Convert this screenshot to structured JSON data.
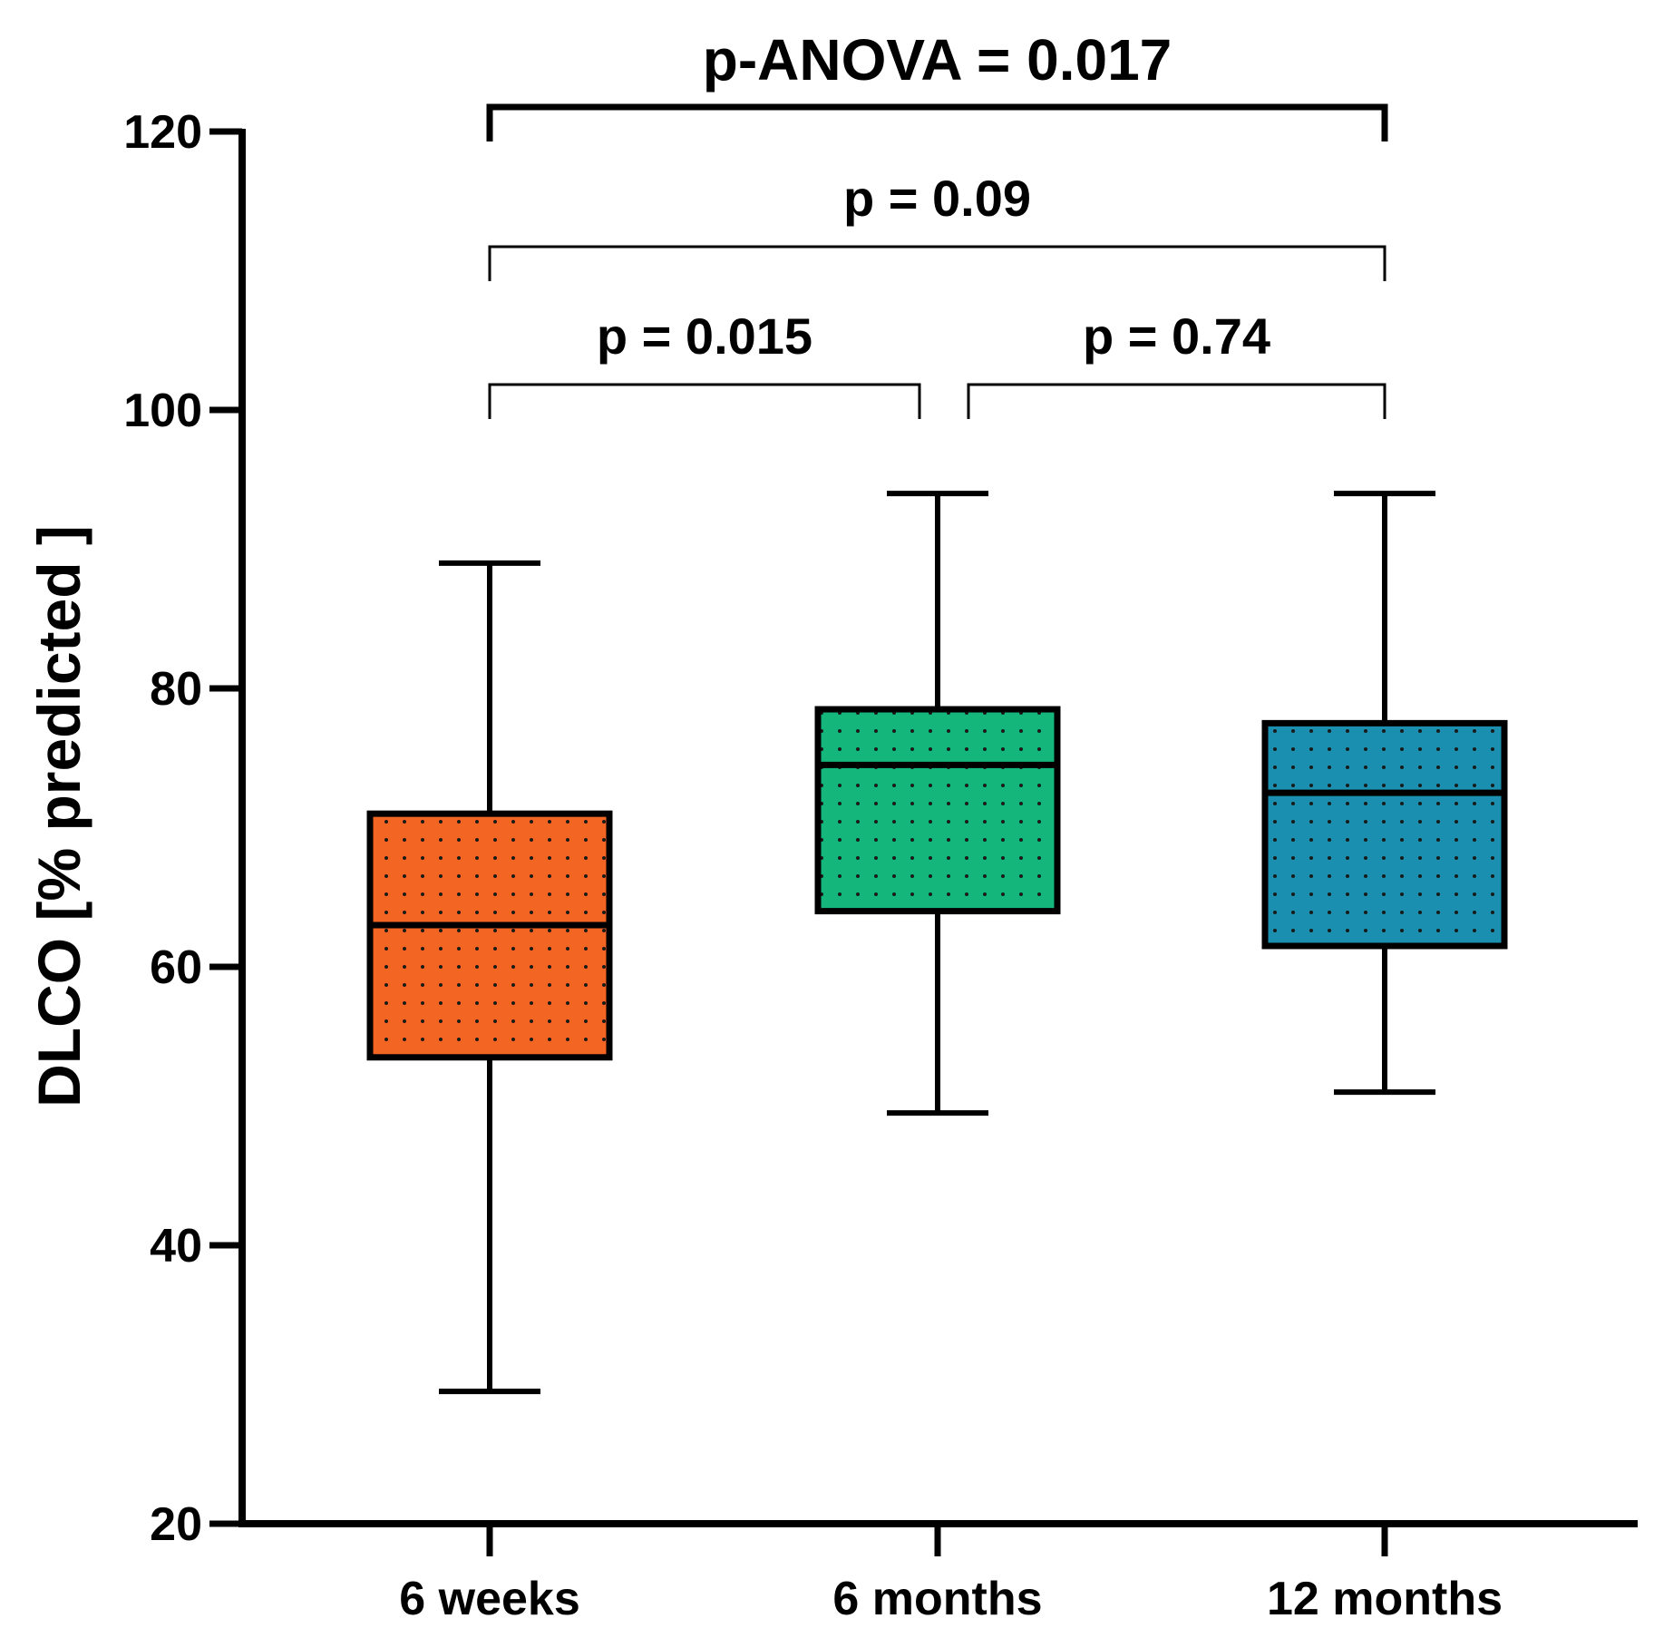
{
  "chart_data": {
    "type": "box",
    "ylabel": "DLCO [% predicted ]",
    "xlabel": "",
    "ylim": [
      20,
      120
    ],
    "yticks": [
      20,
      40,
      60,
      80,
      100,
      120
    ],
    "categories": [
      "6 weeks",
      "6 months",
      "12 months"
    ],
    "boxes": [
      {
        "name": "6 weeks",
        "min": 29.5,
        "q1": 53.5,
        "median": 63,
        "q3": 71,
        "max": 89,
        "color": "#f26522"
      },
      {
        "name": "6 months",
        "min": 49.5,
        "q1": 64,
        "median": 74.5,
        "q3": 78.5,
        "max": 94,
        "color": "#14b67c"
      },
      {
        "name": "12 months",
        "min": 51,
        "q1": 61.5,
        "median": 72.5,
        "q3": 77.5,
        "max": 94,
        "color": "#1a8fb0"
      }
    ],
    "annotations": [
      {
        "label": "p-ANOVA = 0.017",
        "from": 0,
        "to": 2,
        "level": 3
      },
      {
        "label": "p = 0.09",
        "from": 0,
        "to": 2,
        "level": 2
      },
      {
        "label": "p = 0.015",
        "from": 0,
        "to": 1,
        "level": 1
      },
      {
        "label": "p = 0.74",
        "from": 1,
        "to": 2,
        "level": 1
      }
    ]
  }
}
